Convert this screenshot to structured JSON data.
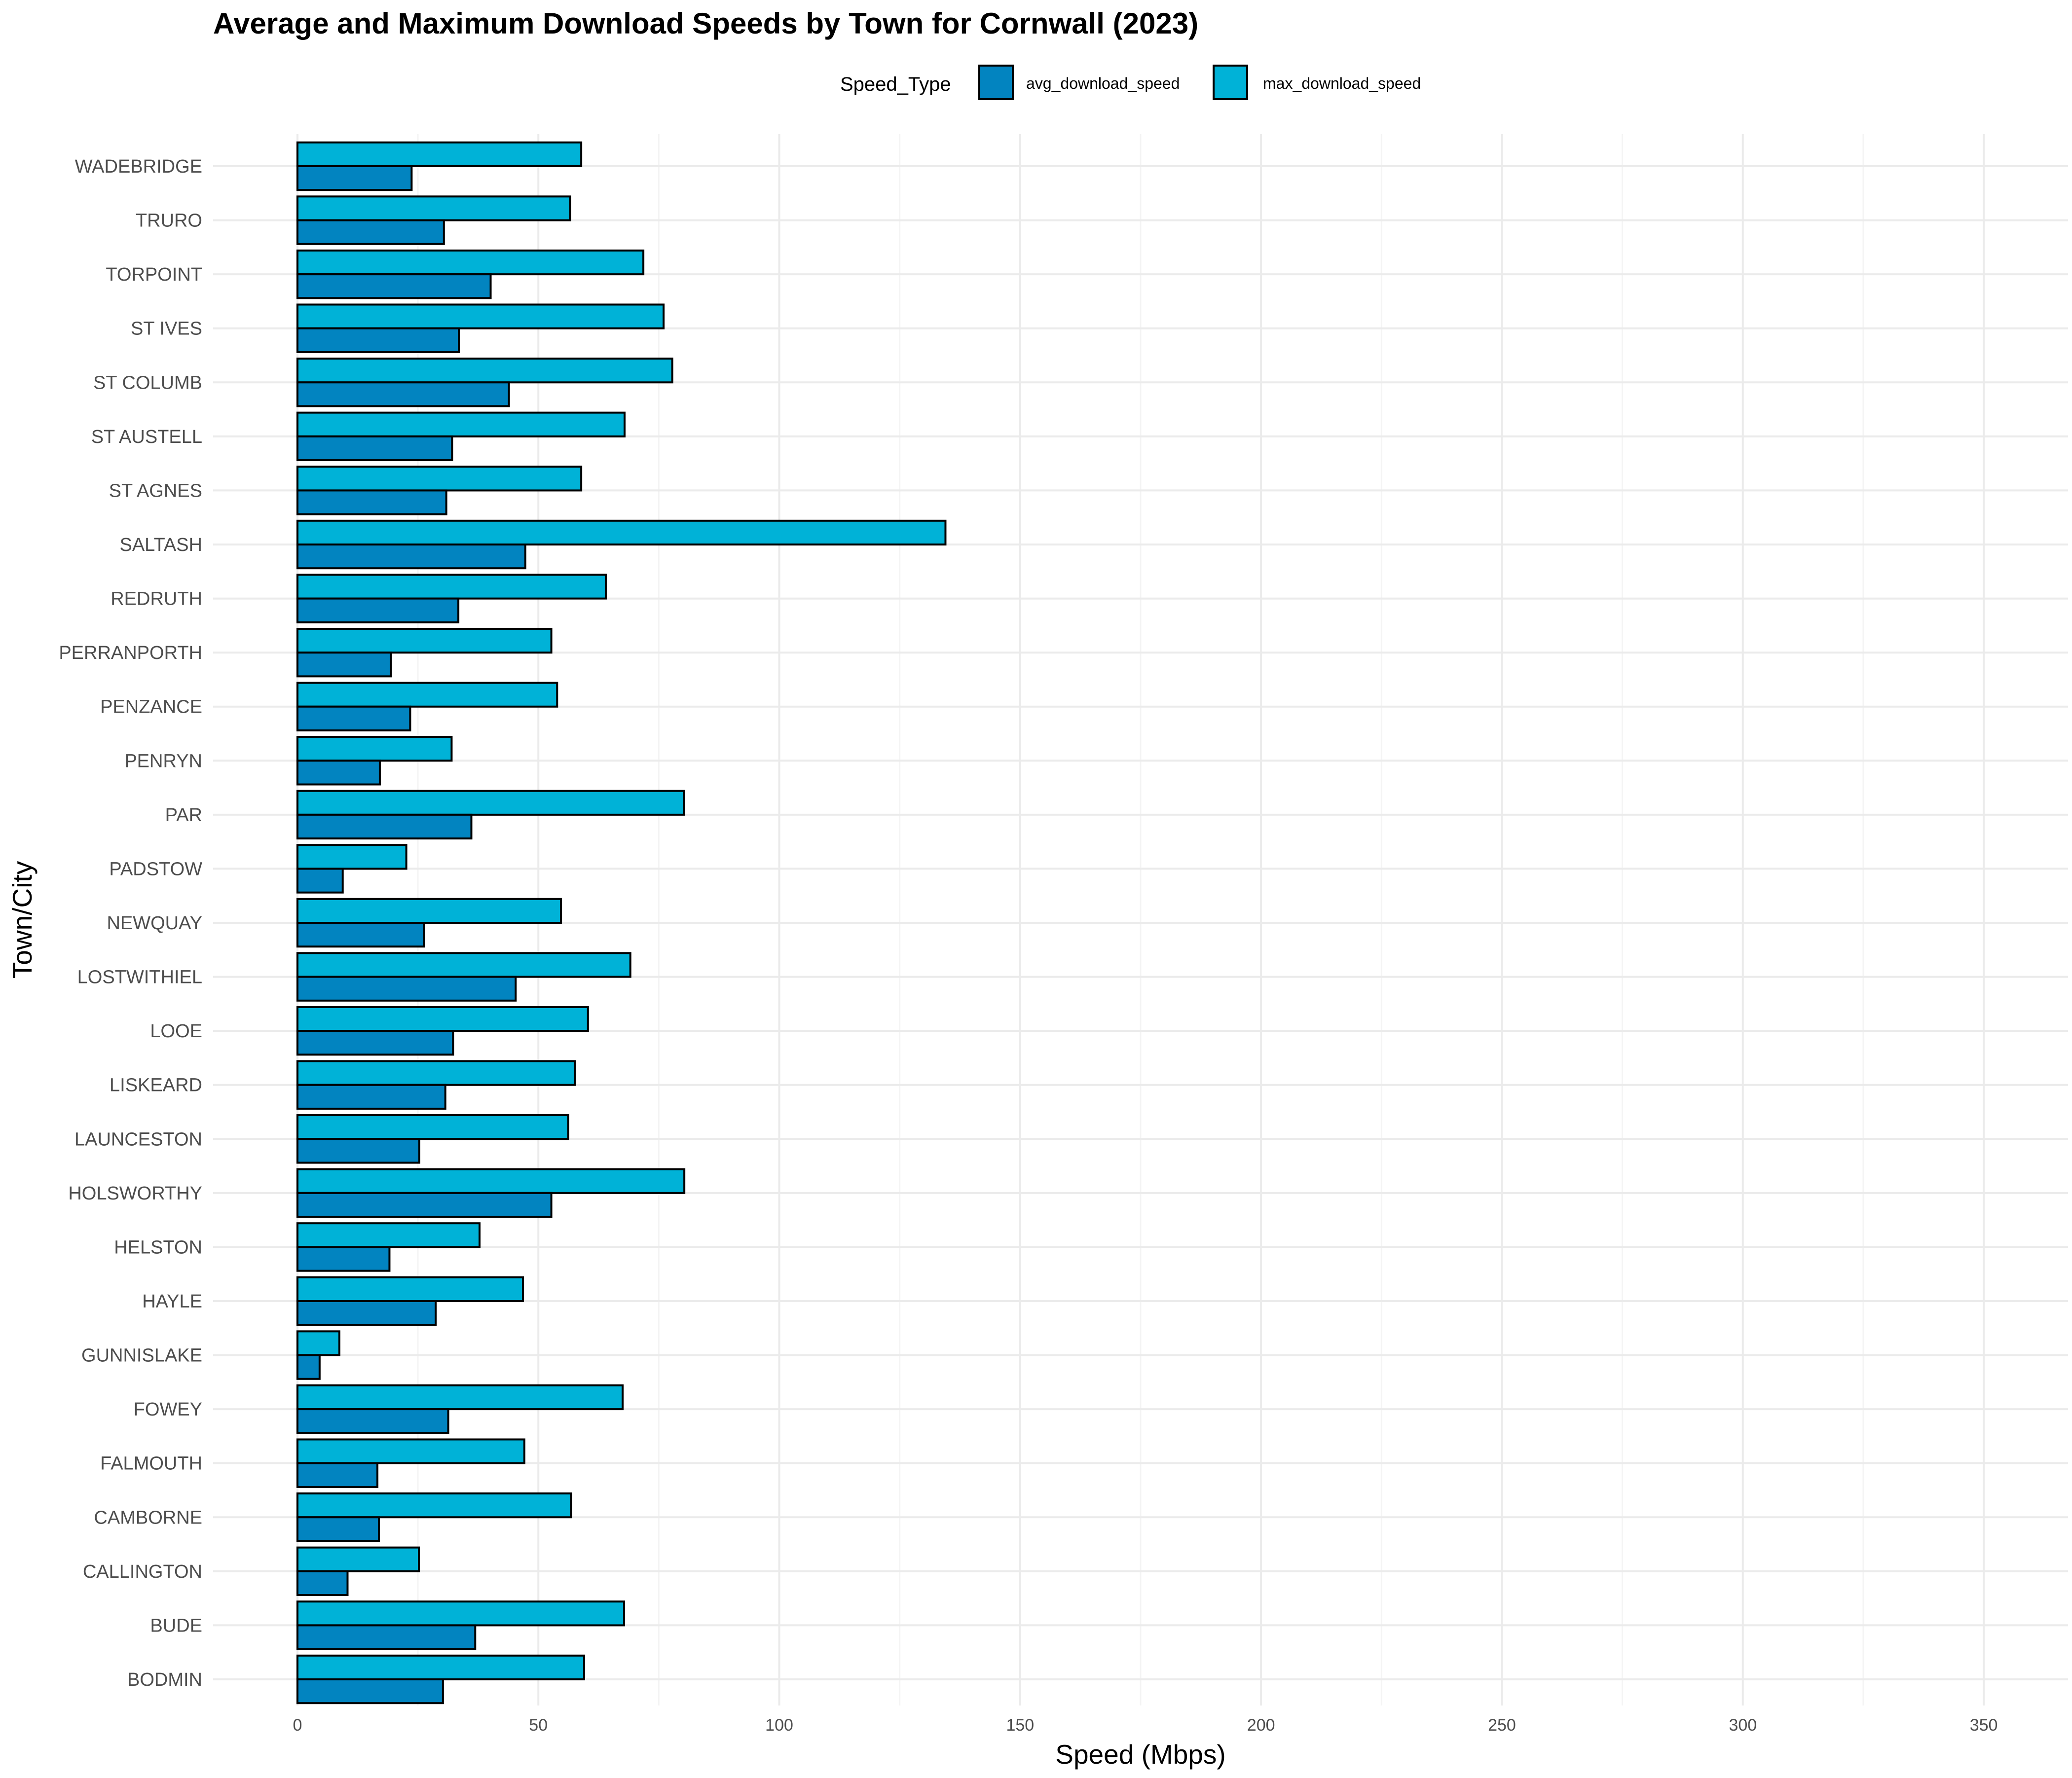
{
  "colors": {
    "avg_download_speed": "#0284c0",
    "max_download_speed": "#00b2d7",
    "bar_stroke": "#000000",
    "grid_major": "#ebebeb",
    "grid_minor": "#f4f4f4",
    "text": "#000000",
    "tick_text": "#4d4d4d"
  },
  "chart_data": {
    "type": "bar",
    "orientation": "horizontal",
    "title": "Average and Maximum Download Speeds by Town for Cornwall (2023)",
    "xlabel": "Speed (Mbps)",
    "ylabel": "Town/City",
    "xlim": [
      -17.5,
      367.5
    ],
    "xticks": [
      0,
      50,
      100,
      150,
      200,
      250,
      300,
      350
    ],
    "grid": true,
    "legend": {
      "title": "Speed_Type",
      "position": "top",
      "entries": [
        "avg_download_speed",
        "max_download_speed"
      ]
    },
    "categories": [
      "BODMIN",
      "BUDE",
      "CALLINGTON",
      "CAMBORNE",
      "FALMOUTH",
      "FOWEY",
      "GUNNISLAKE",
      "HAYLE",
      "HELSTON",
      "HOLSWORTHY",
      "LAUNCESTON",
      "LISKEARD",
      "LOOE",
      "LOSTWITHIEL",
      "NEWQUAY",
      "PADSTOW",
      "PAR",
      "PENRYN",
      "PENZANCE",
      "PERRANPORTH",
      "REDRUTH",
      "SALTASH",
      "ST AGNES",
      "ST AUSTELL",
      "ST COLUMB",
      "ST IVES",
      "TORPOINT",
      "TRURO",
      "WADEBRIDGE"
    ],
    "series": [
      {
        "name": "avg_download_speed",
        "values": [
          30.2,
          36.9,
          10.4,
          16.9,
          16.6,
          31.3,
          4.6,
          28.7,
          19.1,
          52.7,
          25.3,
          30.7,
          32.3,
          45.3,
          26.3,
          9.4,
          36.1,
          17.1,
          23.4,
          19.4,
          33.4,
          47.3,
          30.9,
          32.1,
          43.9,
          33.5,
          40.1,
          30.4,
          23.7
        ]
      },
      {
        "name": "max_download_speed",
        "values": [
          59.5,
          67.8,
          25.2,
          56.8,
          47.1,
          67.5,
          8.7,
          46.8,
          37.8,
          80.3,
          56.2,
          57.6,
          60.3,
          69.1,
          54.7,
          22.6,
          80.2,
          32.0,
          53.9,
          52.7,
          64.0,
          134.5,
          58.9,
          67.9,
          77.8,
          76.0,
          71.8,
          56.6,
          58.9
        ]
      }
    ]
  }
}
